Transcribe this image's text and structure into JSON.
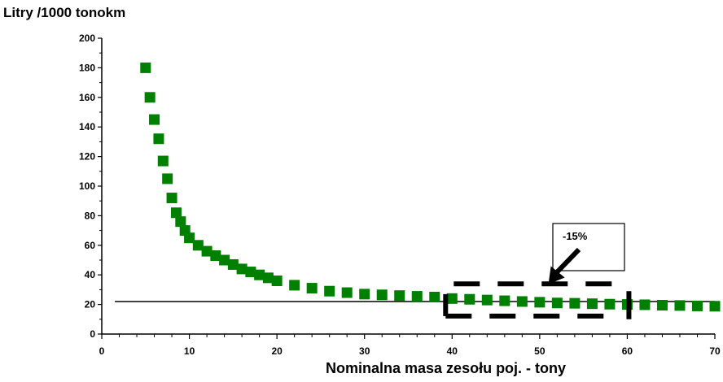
{
  "chart_data": {
    "type": "scatter",
    "ylabel": "Litry /1000 tonokm",
    "xlabel": "Nominalna masa zesołu poj. - tony",
    "xlim": [
      0,
      70
    ],
    "ylim": [
      0,
      200
    ],
    "x_ticks": [
      0,
      10,
      20,
      30,
      40,
      50,
      60,
      70
    ],
    "y_ticks": [
      0,
      20,
      40,
      60,
      80,
      100,
      120,
      140,
      160,
      180,
      200
    ],
    "grid": false,
    "series": [
      {
        "color": "#008000",
        "marker": "square",
        "x": [
          5,
          5.5,
          6,
          6.5,
          7,
          7.5,
          8,
          8.5,
          9,
          9.5,
          10,
          11,
          12,
          13,
          14,
          15,
          16,
          17,
          18,
          19,
          20,
          22,
          24,
          26,
          28,
          30,
          32,
          34,
          36,
          38,
          40,
          42,
          44,
          46,
          48,
          50,
          52,
          54,
          56,
          58,
          60,
          62,
          64,
          66,
          68,
          70
        ],
        "y": [
          180,
          160,
          145,
          132,
          117,
          105,
          92,
          82,
          76,
          70,
          65,
          60,
          56,
          53,
          50,
          47,
          44,
          42,
          40,
          38,
          36,
          33,
          31,
          29,
          28,
          27,
          26.5,
          26,
          25.5,
          25,
          24,
          23.5,
          23,
          22.5,
          22,
          21.5,
          21,
          20.8,
          20.5,
          20.2,
          20,
          19.8,
          19.5,
          19.3,
          19,
          18.8
        ]
      }
    ],
    "reference_line": {
      "y": 22,
      "x_range": [
        1.5,
        70
      ]
    },
    "annotation": {
      "text": "-15%",
      "highlight_x_range": [
        40,
        60
      ],
      "highlight_y_range": [
        5,
        35
      ],
      "arrow_target": [
        51,
        36
      ]
    }
  }
}
